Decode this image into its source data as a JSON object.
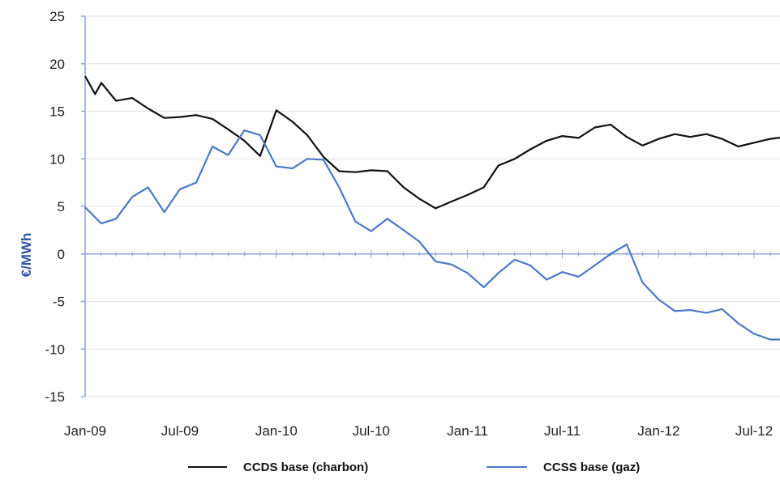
{
  "chart_data": {
    "type": "line",
    "title": "",
    "xlabel": "",
    "ylabel": "€/MWh",
    "ylim": [
      -15,
      25
    ],
    "yticks": [
      -15,
      -10,
      -5,
      0,
      5,
      10,
      15,
      20,
      25
    ],
    "xlim": [
      "2009-01",
      "2012-10"
    ],
    "xtick_labels": [
      "Jan-09",
      "Jul-09",
      "Jan-10",
      "Jul-10",
      "Jan-11",
      "Jul-11",
      "Jan-12",
      "Jul-12"
    ],
    "xtick_dates": [
      "2009-01",
      "2009-07",
      "2010-01",
      "2010-07",
      "2011-01",
      "2011-07",
      "2012-01",
      "2012-07"
    ],
    "grid": true,
    "legend_position": "bottom",
    "series": [
      {
        "name": "CCDS base (charbon)",
        "color": "#111111",
        "points": [
          [
            "2009-01",
            18.7
          ],
          [
            "2009-01-20",
            16.8
          ],
          [
            "2009-02",
            18.0
          ],
          [
            "2009-03",
            16.1
          ],
          [
            "2009-04",
            16.4
          ],
          [
            "2009-05",
            15.3
          ],
          [
            "2009-06",
            14.3
          ],
          [
            "2009-07",
            14.4
          ],
          [
            "2009-08",
            14.6
          ],
          [
            "2009-09",
            14.2
          ],
          [
            "2009-10",
            13.1
          ],
          [
            "2009-11",
            11.9
          ],
          [
            "2009-12",
            10.3
          ],
          [
            "2010-01",
            15.1
          ],
          [
            "2010-02",
            13.9
          ],
          [
            "2010-03",
            12.5
          ],
          [
            "2010-04",
            10.2
          ],
          [
            "2010-05",
            8.7
          ],
          [
            "2010-06",
            8.6
          ],
          [
            "2010-07",
            8.8
          ],
          [
            "2010-08",
            8.7
          ],
          [
            "2010-09",
            7.0
          ],
          [
            "2010-10",
            5.8
          ],
          [
            "2010-11",
            4.8
          ],
          [
            "2010-12",
            5.5
          ],
          [
            "2011-01",
            6.2
          ],
          [
            "2011-02",
            7.0
          ],
          [
            "2011-03",
            9.3
          ],
          [
            "2011-04",
            10.0
          ],
          [
            "2011-05",
            11.0
          ],
          [
            "2011-06",
            11.9
          ],
          [
            "2011-07",
            12.4
          ],
          [
            "2011-08",
            12.2
          ],
          [
            "2011-09",
            13.3
          ],
          [
            "2011-10",
            13.6
          ],
          [
            "2011-11",
            12.3
          ],
          [
            "2011-12",
            11.4
          ],
          [
            "2012-01",
            12.1
          ],
          [
            "2012-02",
            12.6
          ],
          [
            "2012-03",
            12.3
          ],
          [
            "2012-04",
            12.6
          ],
          [
            "2012-05",
            12.1
          ],
          [
            "2012-06",
            11.3
          ],
          [
            "2012-07",
            11.7
          ],
          [
            "2012-08",
            12.1
          ],
          [
            "2012-09",
            12.3
          ]
        ]
      },
      {
        "name": "CCSS base (gaz)",
        "color": "#4a78c8",
        "points": [
          [
            "2009-01",
            4.9
          ],
          [
            "2009-02",
            3.2
          ],
          [
            "2009-03",
            3.7
          ],
          [
            "2009-04",
            6.0
          ],
          [
            "2009-05",
            7.0
          ],
          [
            "2009-06",
            4.4
          ],
          [
            "2009-07",
            6.8
          ],
          [
            "2009-08",
            7.5
          ],
          [
            "2009-09",
            11.3
          ],
          [
            "2009-10",
            10.4
          ],
          [
            "2009-11",
            13.0
          ],
          [
            "2009-12",
            12.5
          ],
          [
            "2010-01",
            9.2
          ],
          [
            "2010-02",
            9.0
          ],
          [
            "2010-03",
            10.0
          ],
          [
            "2010-04",
            9.9
          ],
          [
            "2010-05",
            7.0
          ],
          [
            "2010-06",
            3.4
          ],
          [
            "2010-07",
            2.4
          ],
          [
            "2010-08",
            3.7
          ],
          [
            "2010-09",
            2.5
          ],
          [
            "2010-10",
            1.3
          ],
          [
            "2010-11",
            -0.8
          ],
          [
            "2010-12",
            -1.1
          ],
          [
            "2011-01",
            -2.0
          ],
          [
            "2011-02",
            -3.5
          ],
          [
            "2011-03",
            -2.0
          ],
          [
            "2011-04",
            -0.6
          ],
          [
            "2011-05",
            -1.2
          ],
          [
            "2011-06",
            -2.7
          ],
          [
            "2011-07",
            -1.9
          ],
          [
            "2011-08",
            -2.4
          ],
          [
            "2011-09",
            -1.2
          ],
          [
            "2011-10",
            0.0
          ],
          [
            "2011-11",
            1.0
          ],
          [
            "2011-12",
            -3.0
          ],
          [
            "2012-01",
            -4.8
          ],
          [
            "2012-02",
            -6.0
          ],
          [
            "2012-03",
            -5.9
          ],
          [
            "2012-04",
            -6.2
          ],
          [
            "2012-05",
            -5.8
          ],
          [
            "2012-06",
            -7.3
          ],
          [
            "2012-07",
            -8.4
          ],
          [
            "2012-08",
            -9.0
          ],
          [
            "2012-09",
            -9.0
          ]
        ]
      }
    ]
  }
}
